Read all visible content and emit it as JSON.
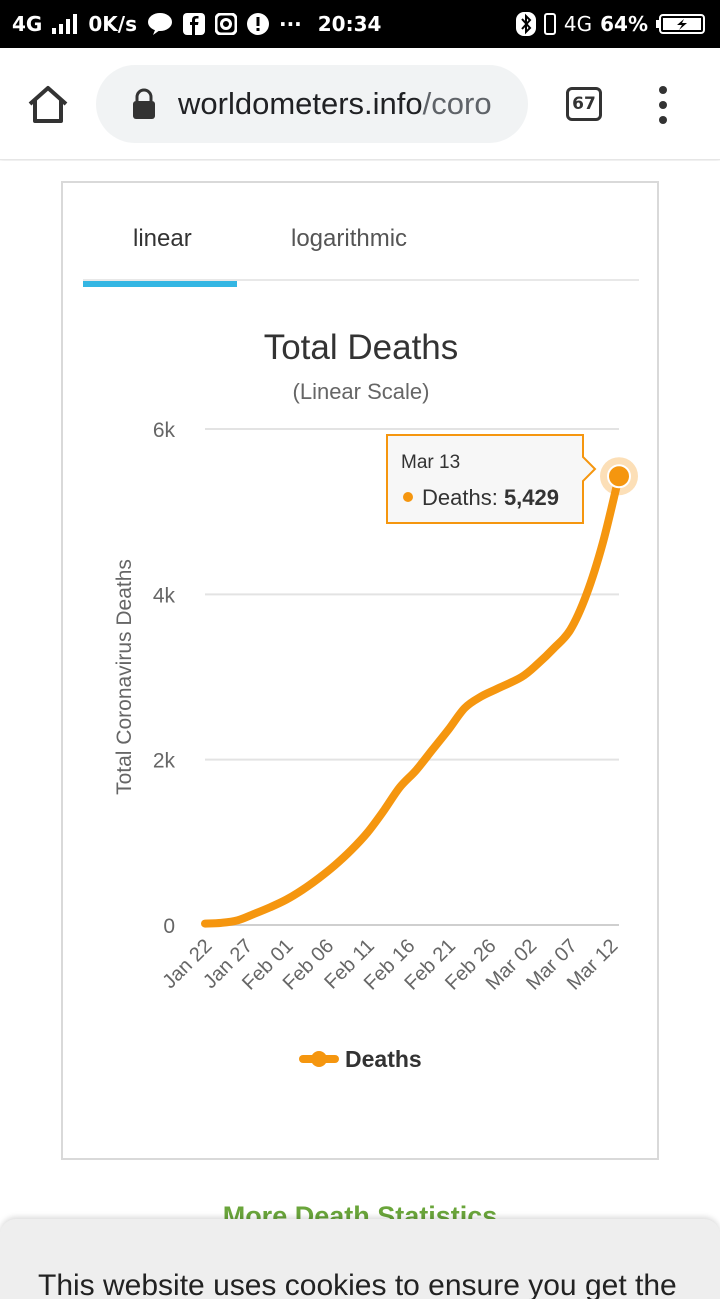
{
  "status_bar": {
    "network": "4G",
    "speed": "0K/s",
    "time": "20:34",
    "network_right": "4G",
    "battery": "64%",
    "more": "···"
  },
  "browser": {
    "url_domain": "worldometers.info",
    "url_rest": "/coro",
    "tab_count": "67"
  },
  "tabs": [
    {
      "label": "linear",
      "active": true
    },
    {
      "label": "logarithmic",
      "active": false
    }
  ],
  "chart_data": {
    "type": "line",
    "title": "Total Deaths",
    "subtitle": "(Linear Scale)",
    "ylabel": "Total Coronavirus Deaths",
    "xlabel": "",
    "ylim": [
      0,
      6000
    ],
    "yticks": [
      0,
      2000,
      4000,
      6000
    ],
    "ytick_labels": [
      "0",
      "2k",
      "4k",
      "6k"
    ],
    "xtick_labels": [
      "Jan 22",
      "Jan 27",
      "Feb 01",
      "Feb 06",
      "Feb 11",
      "Feb 16",
      "Feb 21",
      "Feb 26",
      "Mar 02",
      "Mar 07",
      "Mar 12"
    ],
    "grid": true,
    "legend": "bottom",
    "color": "#f5960f",
    "series": [
      {
        "name": "Deaths",
        "x": [
          "Jan 22",
          "Jan 24",
          "Jan 26",
          "Jan 28",
          "Jan 30",
          "Feb 01",
          "Feb 03",
          "Feb 05",
          "Feb 07",
          "Feb 09",
          "Feb 11",
          "Feb 13",
          "Feb 15",
          "Feb 17",
          "Feb 19",
          "Feb 21",
          "Feb 23",
          "Feb 25",
          "Feb 27",
          "Mar 01",
          "Mar 03",
          "Mar 05",
          "Mar 07",
          "Mar 09",
          "Mar 11",
          "Mar 13"
        ],
        "values": [
          17,
          26,
          56,
          132,
          213,
          306,
          425,
          565,
          723,
          905,
          1117,
          1380,
          1666,
          1871,
          2118,
          2364,
          2625,
          2763,
          2858,
          3000,
          3160,
          3350,
          3570,
          4000,
          4620,
          5429
        ]
      }
    ],
    "tooltip": {
      "date": "Mar 13",
      "label": "Deaths:",
      "value": "5,429"
    }
  },
  "more_link": "More Death Statistics",
  "consent_text": "This website uses cookies to ensure you get the"
}
